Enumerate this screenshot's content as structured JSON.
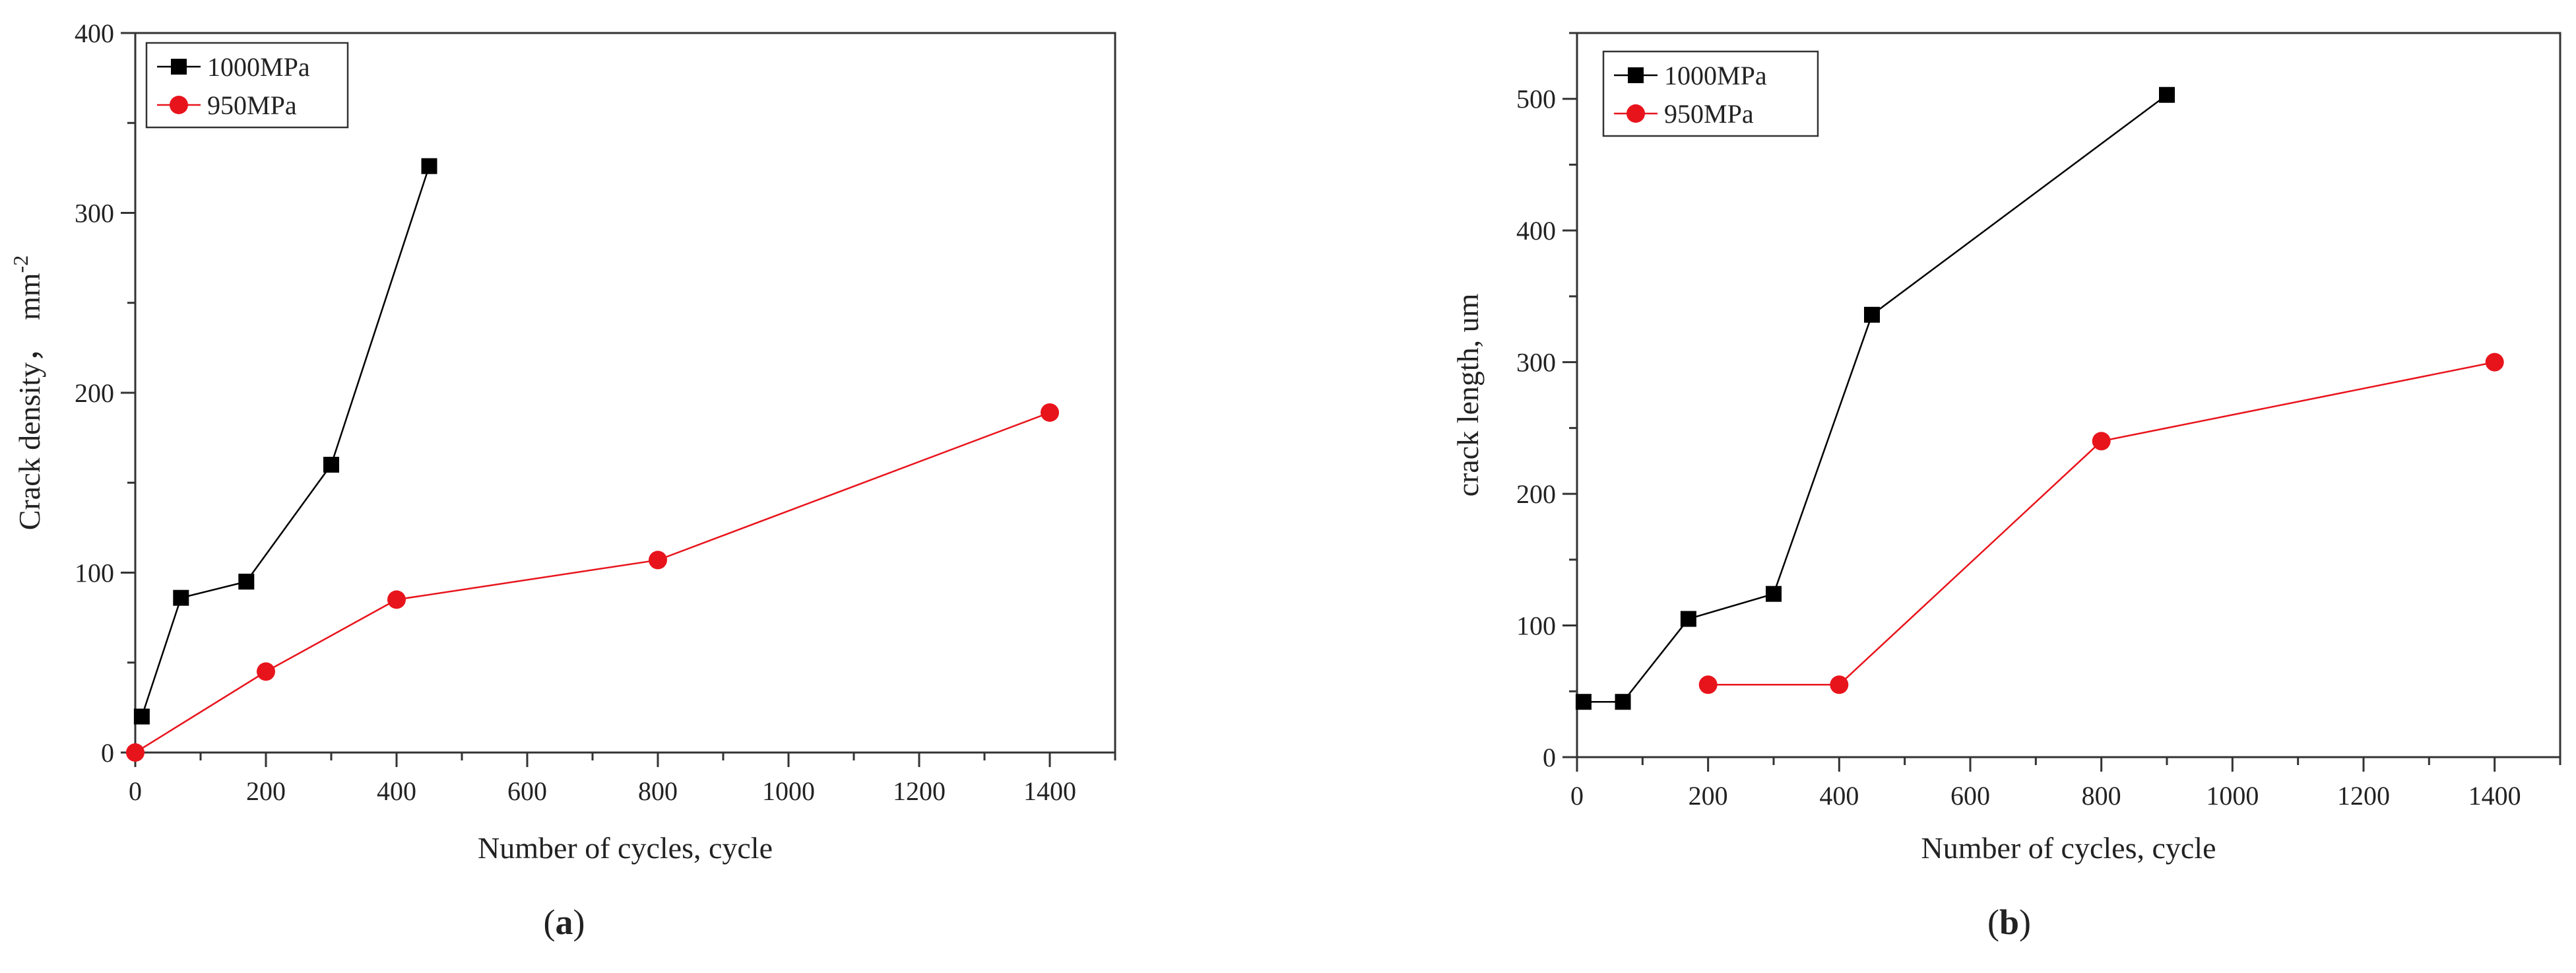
{
  "chart_data": [
    {
      "type": "line",
      "panel_label": "a",
      "title": "",
      "xlabel": "Number of cycles, cycle",
      "ylabel": "Crack density，",
      "ylabel_unit": "mm",
      "ylabel_unit_exp": "-2",
      "xlim": [
        0,
        1500
      ],
      "ylim": [
        0,
        400
      ],
      "xticks": [
        0,
        200,
        400,
        600,
        800,
        1000,
        1200,
        1400
      ],
      "yticks": [
        0,
        100,
        200,
        300,
        400
      ],
      "grid": false,
      "legend_position": "top-left",
      "series": [
        {
          "name": "1000MPa",
          "marker": "square",
          "color": "#000000",
          "x": [
            10,
            70,
            170,
            300,
            450
          ],
          "y": [
            20,
            86,
            95,
            160,
            326
          ]
        },
        {
          "name": "950MPa",
          "marker": "circle",
          "color": "#e8141c",
          "x": [
            0,
            200,
            400,
            800,
            1400
          ],
          "y": [
            0,
            45,
            85,
            107,
            189
          ]
        }
      ]
    },
    {
      "type": "line",
      "panel_label": "b",
      "title": "",
      "xlabel": "Number of cycles, cycle",
      "ylabel": "crack length, um",
      "xlim": [
        0,
        1500
      ],
      "ylim": [
        0,
        550
      ],
      "xticks": [
        0,
        200,
        400,
        600,
        800,
        1000,
        1200,
        1400
      ],
      "yticks": [
        0,
        100,
        200,
        300,
        400,
        500
      ],
      "grid": false,
      "legend_position": "top-left",
      "series": [
        {
          "name": "1000MPa",
          "marker": "square",
          "color": "#000000",
          "x": [
            10,
            70,
            170,
            300,
            450,
            900
          ],
          "y": [
            42,
            42,
            105,
            124,
            336,
            503
          ]
        },
        {
          "name": "950MPa",
          "marker": "circle",
          "color": "#e8141c",
          "x": [
            200,
            400,
            800,
            1400
          ],
          "y": [
            55,
            55,
            240,
            300
          ]
        }
      ]
    }
  ]
}
